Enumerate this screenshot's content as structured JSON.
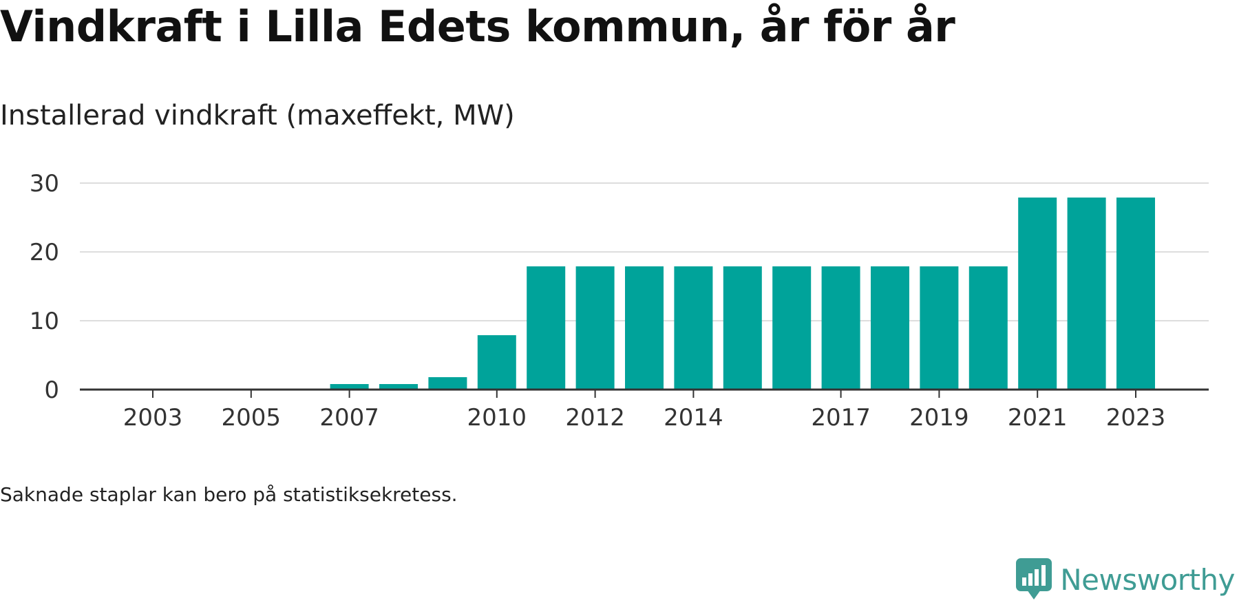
{
  "title": "Vindkraft i Lilla Edets kommun, år för år",
  "subtitle": "Installerad vindkraft (maxeffekt, MW)",
  "note": "Saknade staplar kan bero på statistiksekretess.",
  "brand": {
    "name": "Newsworthy",
    "icon": "speech-bubble-bar-chart-icon",
    "color": "#3f9c94"
  },
  "colors": {
    "bar": "#00a39a",
    "grid": "#dddddd",
    "axis": "#333333"
  },
  "chart_data": {
    "type": "bar",
    "categories": [
      "2003",
      "2004",
      "2005",
      "2006",
      "2007",
      "2008",
      "2009",
      "2010",
      "2011",
      "2012",
      "2013",
      "2014",
      "2015",
      "2016",
      "2017",
      "2018",
      "2019",
      "2020",
      "2021",
      "2022",
      "2023"
    ],
    "values": [
      0,
      0,
      0,
      0,
      0.8,
      0.8,
      1.8,
      7.9,
      17.9,
      17.9,
      17.9,
      17.9,
      17.9,
      17.9,
      17.9,
      17.9,
      17.9,
      17.9,
      27.9,
      27.9,
      27.9
    ],
    "x_tick_labels": [
      "2003",
      "2005",
      "2007",
      "2010",
      "2012",
      "2014",
      "2017",
      "2019",
      "2021",
      "2023"
    ],
    "y_ticks": [
      0,
      10,
      20,
      30
    ],
    "ylim": [
      0,
      30
    ],
    "grid": true,
    "legend": "none"
  }
}
